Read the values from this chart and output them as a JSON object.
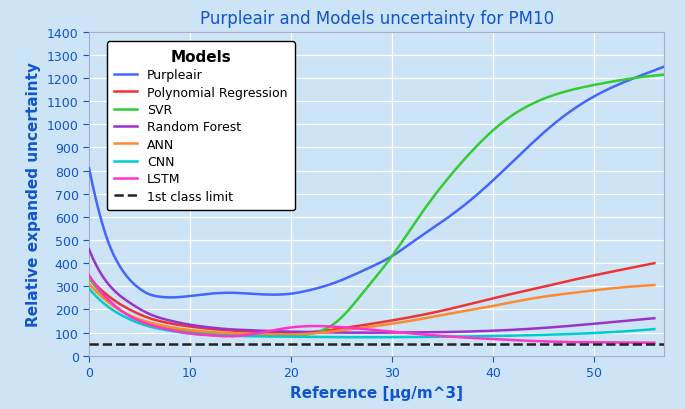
{
  "title": "Purpleair and Models uncertainty for PM10",
  "xlabel": "Reference [μg/m^3]",
  "ylabel": "Relative expanded uncertainty",
  "background_color": "#cce4f5",
  "title_color": "#1155cc",
  "axis_color": "#1155cc",
  "xlim": [
    0,
    57
  ],
  "ylim": [
    0,
    1400
  ],
  "yticks": [
    0,
    100,
    200,
    300,
    400,
    500,
    600,
    700,
    800,
    900,
    1000,
    1100,
    1200,
    1300,
    1400
  ],
  "xticks": [
    0,
    10,
    20,
    30,
    40,
    50
  ],
  "first_class_limit": 50,
  "curves": {
    "Purpleair": {
      "color": "#4466ff",
      "x": [
        0,
        1,
        2,
        3,
        4,
        5,
        6,
        7,
        8,
        10,
        12,
        14,
        16,
        18,
        20,
        22,
        24,
        26,
        28,
        30,
        32,
        35,
        38,
        42,
        46,
        50,
        54,
        57
      ],
      "y": [
        810,
        620,
        480,
        390,
        330,
        290,
        265,
        255,
        252,
        258,
        268,
        272,
        268,
        264,
        268,
        285,
        310,
        345,
        385,
        430,
        490,
        580,
        680,
        840,
        1000,
        1120,
        1200,
        1250
      ]
    },
    "Polynomial Regression": {
      "color": "#ee3333",
      "x": [
        0,
        2,
        4,
        6,
        8,
        10,
        12,
        14,
        16,
        18,
        20,
        22,
        25,
        28,
        32,
        36,
        40,
        44,
        48,
        52,
        56
      ],
      "y": [
        340,
        255,
        200,
        162,
        140,
        126,
        116,
        109,
        104,
        100,
        98,
        102,
        118,
        138,
        168,
        205,
        248,
        288,
        328,
        365,
        400
      ]
    },
    "SVR": {
      "color": "#33cc33",
      "x": [
        0,
        2,
        4,
        6,
        8,
        10,
        12,
        14,
        16,
        18,
        20,
        21,
        22,
        23,
        24,
        25,
        27,
        30,
        33,
        37,
        41,
        45,
        50,
        54,
        57
      ],
      "y": [
        335,
        235,
        172,
        136,
        115,
        104,
        98,
        93,
        90,
        88,
        88,
        90,
        95,
        108,
        130,
        165,
        265,
        430,
        620,
        840,
        1010,
        1110,
        1170,
        1200,
        1215
      ]
    },
    "Random Forest": {
      "color": "#9933cc",
      "x": [
        0,
        2,
        4,
        6,
        8,
        10,
        12,
        14,
        16,
        18,
        20,
        25,
        30,
        35,
        40,
        45,
        50,
        56
      ],
      "y": [
        460,
        305,
        230,
        180,
        152,
        134,
        122,
        114,
        110,
        106,
        104,
        100,
        100,
        102,
        108,
        120,
        138,
        162
      ]
    },
    "ANN": {
      "color": "#ff8833",
      "x": [
        0,
        2,
        4,
        6,
        8,
        10,
        12,
        14,
        16,
        18,
        20,
        22,
        25,
        28,
        32,
        36,
        40,
        44,
        48,
        52,
        56
      ],
      "y": [
        310,
        228,
        175,
        144,
        124,
        111,
        103,
        98,
        95,
        93,
        92,
        96,
        110,
        126,
        152,
        184,
        215,
        248,
        272,
        292,
        305
      ]
    },
    "CNN": {
      "color": "#00cccc",
      "x": [
        0,
        2,
        4,
        6,
        8,
        10,
        12,
        14,
        16,
        18,
        20,
        25,
        30,
        35,
        40,
        45,
        50,
        56
      ],
      "y": [
        290,
        208,
        158,
        126,
        108,
        96,
        90,
        86,
        84,
        83,
        82,
        80,
        80,
        82,
        85,
        90,
        98,
        115
      ]
    },
    "LSTM": {
      "color": "#ff33cc",
      "x": [
        0,
        2,
        4,
        6,
        8,
        10,
        12,
        14,
        16,
        18,
        20,
        22,
        24,
        26,
        28,
        32,
        36,
        40,
        45,
        50,
        56
      ],
      "y": [
        348,
        238,
        172,
        134,
        112,
        96,
        88,
        84,
        92,
        108,
        122,
        128,
        126,
        120,
        112,
        96,
        82,
        72,
        62,
        58,
        56
      ]
    }
  },
  "legend_title": "Models",
  "legend_title_fontsize": 11,
  "legend_fontsize": 9,
  "title_fontsize": 12,
  "axis_label_fontsize": 11,
  "tick_fontsize": 9
}
